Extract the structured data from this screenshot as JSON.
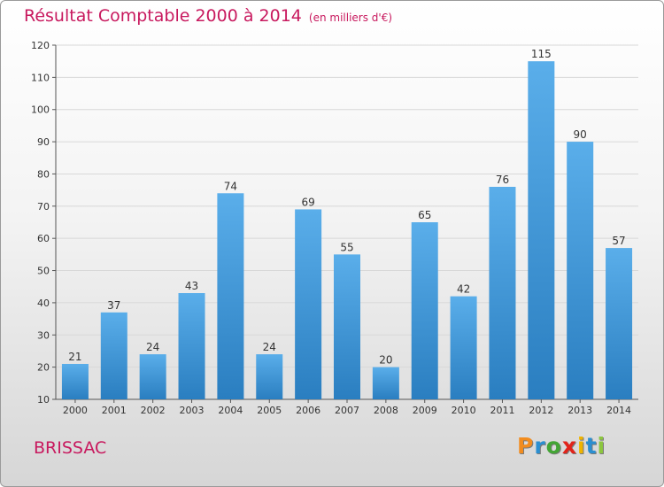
{
  "page": {
    "title": "Résultat Comptable 2000 à 2014",
    "subtitle": "(en milliers d'€)",
    "city": "BRISSAC",
    "logo": {
      "letters": [
        "P",
        "r",
        "o",
        "x",
        "i",
        "t",
        "i"
      ],
      "colors": [
        "#f28c1e",
        "#2b8fd1",
        "#43a535",
        "#e2231a",
        "#f0b400",
        "#2b8fd1",
        "#8cc63f"
      ]
    }
  },
  "chart_data": {
    "type": "bar",
    "title": "Résultat Comptable 2000 à 2014",
    "subtitle": "(en milliers d'€)",
    "categories": [
      "2000",
      "2001",
      "2002",
      "2003",
      "2004",
      "2005",
      "2006",
      "2007",
      "2008",
      "2009",
      "2010",
      "2011",
      "2012",
      "2013",
      "2014"
    ],
    "values": [
      21,
      37,
      24,
      43,
      74,
      24,
      69,
      55,
      20,
      65,
      42,
      76,
      115,
      90,
      57
    ],
    "ylim": [
      10,
      120
    ],
    "yticks": [
      10,
      20,
      30,
      40,
      50,
      60,
      70,
      80,
      90,
      100,
      110,
      120
    ],
    "grid": true,
    "bar_colors": {
      "top": "#5aaeea",
      "bottom": "#2a7ec0"
    },
    "grid_color": "#d8d8d8",
    "label_color": "#333333"
  }
}
